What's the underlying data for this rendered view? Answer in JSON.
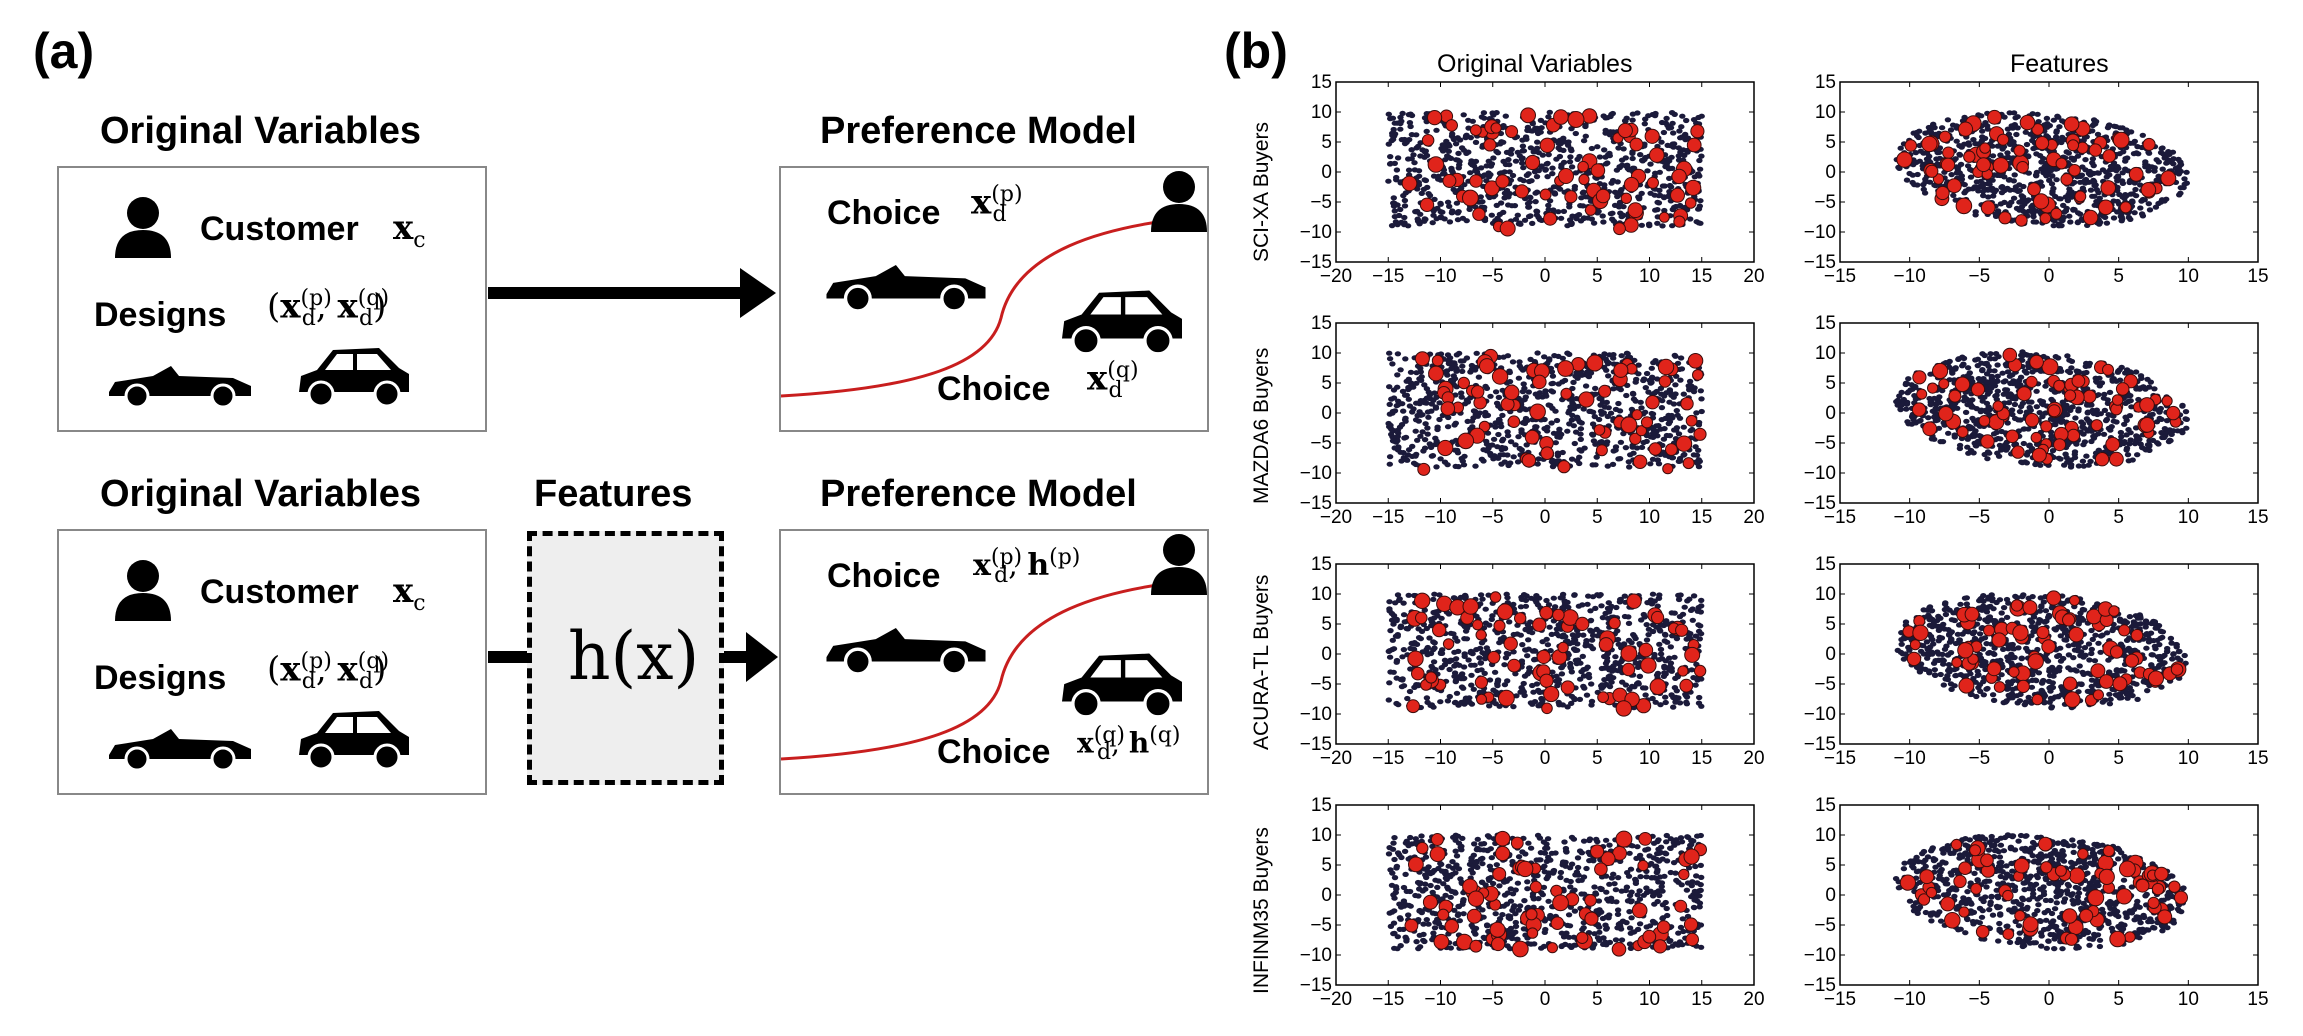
{
  "panel_a": {
    "label": "(a)",
    "top": {
      "left_heading": "Original Variables",
      "right_heading": "Preference Model",
      "customer_label": "Customer",
      "customer_var": "x",
      "customer_sub": "c",
      "designs_label": "Designs",
      "designs_var_p": "x",
      "designs_sub": "d",
      "p_sup": "(p)",
      "q_sup": "(q)",
      "choice_p_label": "Choice",
      "choice_q_label": "Choice"
    },
    "bottom": {
      "left_heading": "Original Variables",
      "middle_heading": "Features",
      "right_heading": "Preference Model",
      "customer_label": "Customer",
      "designs_label": "Designs",
      "feature_fn": "h(x)",
      "choice_p_label": "Choice",
      "choice_q_label": "Choice",
      "h_var": "h"
    }
  },
  "panel_b": {
    "label": "(b)",
    "col_titles": [
      "Original Variables",
      "Features"
    ],
    "row_labels": [
      "SCI-XA Buyers",
      "MAZDA6 Buyers",
      "ACURA-TL Buyers",
      "INFINM35 Buyers"
    ]
  },
  "chart_data": [
    {
      "type": "scatter",
      "row": "SCI-XA Buyers",
      "column": "Original Variables",
      "xlim": [
        -20,
        20
      ],
      "ylim": [
        -15,
        15
      ],
      "xticks": [
        -20,
        -15,
        -10,
        -5,
        0,
        5,
        10,
        15,
        20
      ],
      "yticks": [
        -15,
        -10,
        -5,
        0,
        5,
        10,
        15
      ],
      "series": [
        {
          "name": "",
          "color": "#1b1a3a"
        },
        {
          "name": "",
          "color": "#e0241b"
        }
      ]
    },
    {
      "type": "scatter",
      "row": "SCI-XA Buyers",
      "column": "Features",
      "xlim": [
        -15,
        15
      ],
      "ylim": [
        -15,
        15
      ],
      "xticks": [
        -15,
        -10,
        -5,
        0,
        5,
        10,
        15
      ],
      "yticks": [
        -15,
        -10,
        -5,
        0,
        5,
        10,
        15
      ],
      "series": [
        {
          "name": "",
          "color": "#1b1a3a"
        },
        {
          "name": "",
          "color": "#e0241b"
        }
      ]
    },
    {
      "type": "scatter",
      "row": "MAZDA6 Buyers",
      "column": "Original Variables",
      "xlim": [
        -20,
        20
      ],
      "ylim": [
        -15,
        15
      ],
      "xticks": [
        -20,
        -15,
        -10,
        -5,
        0,
        5,
        10,
        15,
        20
      ],
      "yticks": [
        -15,
        -10,
        -5,
        0,
        5,
        10,
        15
      ],
      "series": [
        {
          "name": "",
          "color": "#1b1a3a"
        },
        {
          "name": "",
          "color": "#e0241b"
        }
      ]
    },
    {
      "type": "scatter",
      "row": "MAZDA6 Buyers",
      "column": "Features",
      "xlim": [
        -15,
        15
      ],
      "ylim": [
        -15,
        15
      ],
      "xticks": [
        -15,
        -10,
        -5,
        0,
        5,
        10,
        15
      ],
      "yticks": [
        -15,
        -10,
        -5,
        0,
        5,
        10,
        15
      ],
      "series": [
        {
          "name": "",
          "color": "#1b1a3a"
        },
        {
          "name": "",
          "color": "#e0241b"
        }
      ]
    },
    {
      "type": "scatter",
      "row": "ACURA-TL Buyers",
      "column": "Original Variables",
      "xlim": [
        -20,
        20
      ],
      "ylim": [
        -15,
        15
      ],
      "xticks": [
        -20,
        -15,
        -10,
        -5,
        0,
        5,
        10,
        15,
        20
      ],
      "yticks": [
        -15,
        -10,
        -5,
        0,
        5,
        10,
        15
      ],
      "series": [
        {
          "name": "",
          "color": "#1b1a3a"
        },
        {
          "name": "",
          "color": "#e0241b"
        }
      ]
    },
    {
      "type": "scatter",
      "row": "ACURA-TL Buyers",
      "column": "Features",
      "xlim": [
        -15,
        15
      ],
      "ylim": [
        -15,
        15
      ],
      "xticks": [
        -15,
        -10,
        -5,
        0,
        5,
        10,
        15
      ],
      "yticks": [
        -15,
        -10,
        -5,
        0,
        5,
        10,
        15
      ],
      "series": [
        {
          "name": "",
          "color": "#1b1a3a"
        },
        {
          "name": "",
          "color": "#e0241b"
        }
      ]
    },
    {
      "type": "scatter",
      "row": "INFINM35 Buyers",
      "column": "Original Variables",
      "xlim": [
        -20,
        20
      ],
      "ylim": [
        -15,
        15
      ],
      "xticks": [
        -20,
        -15,
        -10,
        -5,
        0,
        5,
        10,
        15,
        20
      ],
      "yticks": [
        -15,
        -10,
        -5,
        0,
        5,
        10,
        15
      ],
      "series": [
        {
          "name": "",
          "color": "#1b1a3a"
        },
        {
          "name": "",
          "color": "#e0241b"
        }
      ]
    },
    {
      "type": "scatter",
      "row": "INFINM35 Buyers",
      "column": "Features",
      "xlim": [
        -15,
        15
      ],
      "ylim": [
        -15,
        15
      ],
      "xticks": [
        -15,
        -10,
        -5,
        0,
        5,
        10,
        15
      ],
      "yticks": [
        -15,
        -10,
        -5,
        0,
        5,
        10,
        15
      ],
      "series": [
        {
          "name": "",
          "color": "#1b1a3a"
        },
        {
          "name": "",
          "color": "#e0241b"
        }
      ]
    }
  ]
}
